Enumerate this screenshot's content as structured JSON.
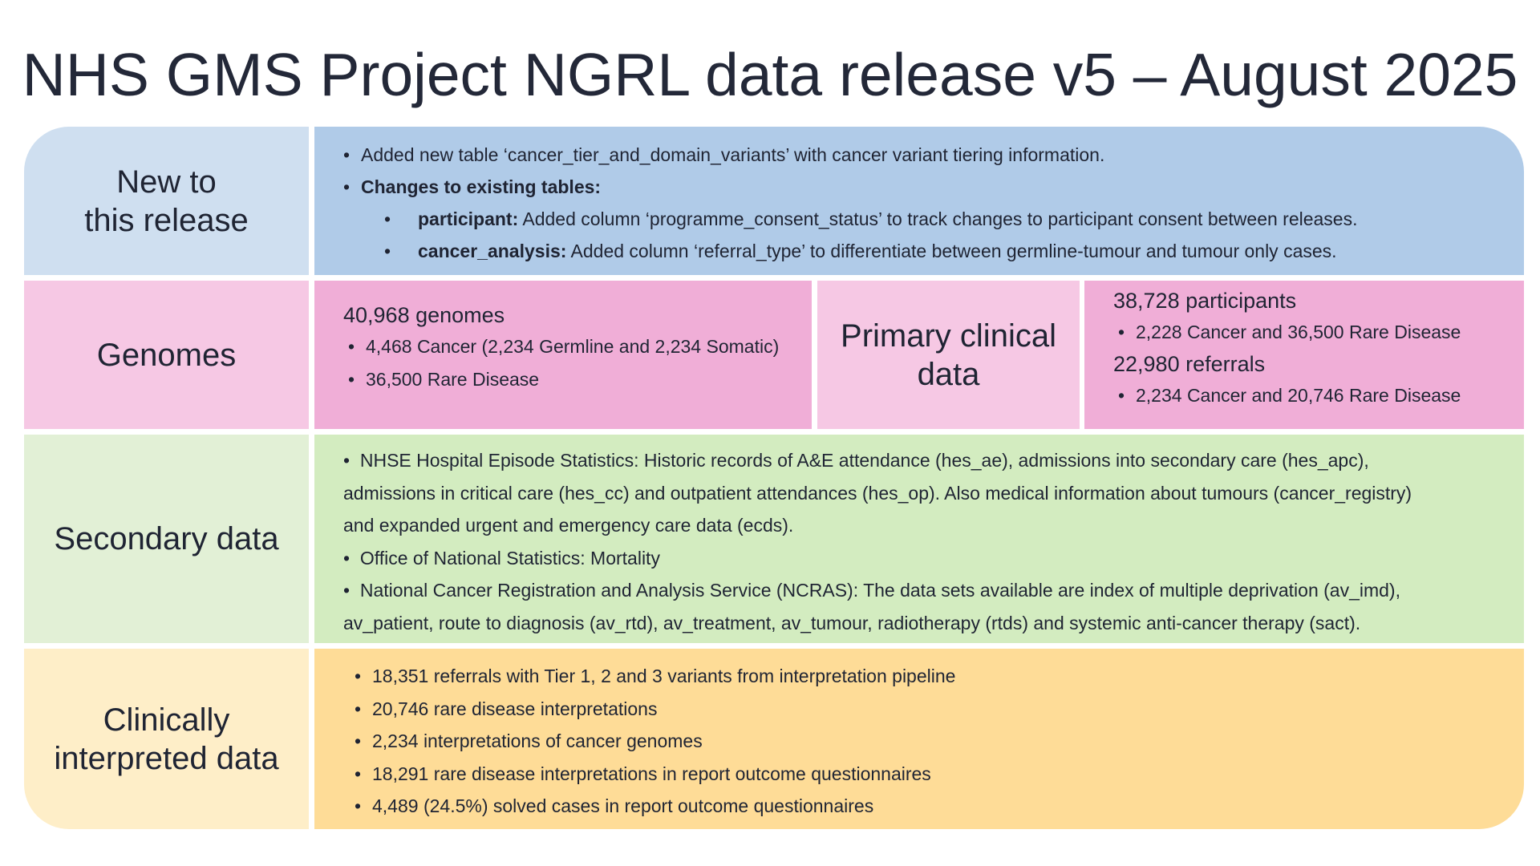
{
  "title": "NHS GMS Project NGRL data release v5 – August 2025",
  "new_release": {
    "label_line1": "New to",
    "label_line2": "this release",
    "item1": "Added new table ‘cancer_tier_and_domain_variants’  with cancer variant tiering information.",
    "item2": "Changes to existing tables:",
    "sub1_bold": "participant:",
    "sub1_text": " Added column ‘programme_consent_status’ to track changes to participant consent between releases.",
    "sub2_bold": "cancer_analysis:",
    "sub2_text": " Added column ‘referral_type’ to differentiate between germline-tumour and tumour only cases."
  },
  "genomes": {
    "label": "Genomes",
    "total": "40,968 genomes",
    "items": [
      "4,468 Cancer (2,234 Germline and 2,234 Somatic)",
      "36,500 Rare Disease"
    ]
  },
  "primary_clinical": {
    "label_line1": "Primary clinical",
    "label_line2": "data",
    "participants": "38,728 participants",
    "participants_item": "2,228 Cancer and 36,500 Rare Disease",
    "referrals": "22,980 referrals",
    "referrals_item": "2,234 Cancer and 20,746 Rare Disease"
  },
  "secondary": {
    "label": "Secondary data",
    "para1_line1": "NHSE Hospital Episode Statistics: Historic records of A&E attendance (hes_ae), admissions into secondary care (hes_apc),",
    "para1_line2": "admissions in critical care (hes_cc) and outpatient attendances (hes_op). Also medical information about tumours (cancer_registry)",
    "para1_line3": "and expanded urgent and emergency care data (ecds).",
    "para2": "Office of National Statistics: Mortality",
    "para3_line1": "National Cancer Registration and Analysis Service (NCRAS): The data sets available are index of multiple deprivation (av_imd),",
    "para3_line2": "av_patient, route to diagnosis (av_rtd), av_treatment, av_tumour, radiotherapy (rtds) and systemic anti-cancer therapy (sact)."
  },
  "clinical": {
    "label_line1": "Clinically",
    "label_line2": "interpreted data",
    "items": [
      "18,351 referrals with Tier 1, 2 and 3 variants from interpretation pipeline",
      "20,746 rare disease interpretations",
      "2,234 interpretations of cancer genomes",
      "18,291 rare disease interpretations in report outcome questionnaires",
      "4,489  (24.5%) solved cases in report outcome questionnaires"
    ]
  },
  "colors": {
    "blue_label": "#cfdff0",
    "blue_content": "#b0cbe8",
    "pink_label": "#f6c8e4",
    "pink_content": "#f0aed7",
    "green_label": "#e2f0d6",
    "green_content": "#d3ecc0",
    "yellow_label": "#feeec8",
    "yellow_content": "#fedc97"
  }
}
